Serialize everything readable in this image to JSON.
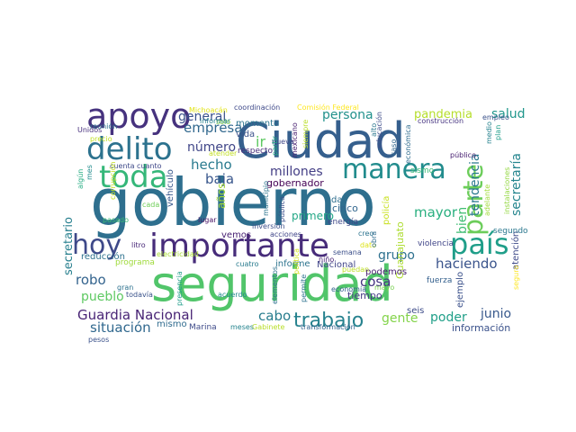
{
  "words": [
    {
      "text": "gobierno",
      "color": "#2e6f8e"
    },
    {
      "text": "seguridad",
      "color": "#51c56a"
    },
    {
      "text": "Ciudad",
      "color": "#355f8d"
    },
    {
      "text": "importante",
      "color": "#472c7a"
    },
    {
      "text": "apoyo",
      "color": "#46327e"
    },
    {
      "text": "delito",
      "color": "#2c728e"
    },
    {
      "text": "toda",
      "color": "#35b779"
    },
    {
      "text": "manera",
      "color": "#228c8d"
    },
    {
      "text": "país",
      "color": "#1f9e89"
    },
    {
      "text": "parte",
      "color": "#6ccd5a"
    },
    {
      "text": "hoy",
      "color": "#3e4989"
    },
    {
      "text": "trabajo",
      "color": "#26828e"
    },
    {
      "text": "Guardia Nacional",
      "color": "#482475"
    },
    {
      "text": "situación",
      "color": "#30688e"
    },
    {
      "text": "empresa",
      "color": "#31688e"
    },
    {
      "text": "general",
      "color": "#3b528b"
    },
    {
      "text": "persona",
      "color": "#21918c"
    },
    {
      "text": "pandemia",
      "color": "#b5de2b"
    },
    {
      "text": "salud",
      "color": "#1f968b"
    },
    {
      "text": "secretaría",
      "color": "#25858e"
    },
    {
      "text": "tendencia",
      "color": "#2a788e"
    },
    {
      "text": "bien",
      "color": "#3fbc73"
    },
    {
      "text": "millones",
      "color": "#433e85"
    },
    {
      "text": "baja",
      "color": "#39568c"
    },
    {
      "text": "hecho",
      "color": "#297a8e"
    },
    {
      "text": "número",
      "color": "#404688"
    },
    {
      "text": "mayor",
      "color": "#29af7f"
    },
    {
      "text": "grupo",
      "color": "#2d708e"
    },
    {
      "text": "haciendo",
      "color": "#3a548c"
    },
    {
      "text": "robo",
      "color": "#33638d"
    },
    {
      "text": "pueblo",
      "color": "#5ec962"
    },
    {
      "text": "cosa",
      "color": "#453581"
    },
    {
      "text": "poder",
      "color": "#1f9f88"
    },
    {
      "text": "gente",
      "color": "#84d44b"
    },
    {
      "text": "cabo",
      "color": "#287d8e"
    },
    {
      "text": "junio",
      "color": "#38598c"
    },
    {
      "text": "secretario",
      "color": "#277f8e"
    },
    {
      "text": "información",
      "color": "#3b528b"
    },
    {
      "text": "primero",
      "color": "#22a785"
    },
    {
      "text": "cinco",
      "color": "#31668e"
    },
    {
      "text": "tiempo",
      "color": "#443983"
    },
    {
      "text": "ir",
      "color": "#5ec962"
    },
    {
      "text": "mismo",
      "color": "#2f6b8e"
    },
    {
      "text": "Marina",
      "color": "#3e4a89"
    },
    {
      "text": "reducción",
      "color": "#2d718e"
    },
    {
      "text": "programa",
      "color": "#9fda3a"
    },
    {
      "text": "años",
      "color": "#a2da37"
    },
    {
      "text": "gobernador",
      "color": "#440154"
    },
    {
      "text": "vehículo",
      "color": "#38588c"
    },
    {
      "text": "momento",
      "color": "#2b748e"
    },
    {
      "text": "vida",
      "color": "#3b528b"
    },
    {
      "text": "respecto",
      "color": "#472d7b"
    },
    {
      "text": "informe",
      "color": "#2c738e"
    },
    {
      "text": "Nacional",
      "color": "#404588"
    },
    {
      "text": "dar",
      "color": "#2e6e8e"
    },
    {
      "text": "vemos",
      "color": "#482173"
    },
    {
      "text": "energía",
      "color": "#3f4889"
    },
    {
      "text": "Guanajuato",
      "color": "#addc30"
    },
    {
      "text": "policía",
      "color": "#c8e020"
    },
    {
      "text": "ejemplo",
      "color": "#3b518b"
    },
    {
      "text": "seis",
      "color": "#3e4c8a"
    },
    {
      "text": "podemos",
      "color": "#481f70"
    },
    {
      "text": "fuerza",
      "color": "#34608d"
    },
    {
      "text": "violencia",
      "color": "#404588"
    },
    {
      "text": "atención",
      "color": "#3e4a89"
    },
    {
      "text": "segundo",
      "color": "#2a778e"
    },
    {
      "text": "sismo",
      "color": "#3aba76"
    },
    {
      "text": "público",
      "color": "#482071"
    },
    {
      "text": "construcción",
      "color": "#463480"
    },
    {
      "text": "empleo",
      "color": "#3b528b"
    },
    {
      "text": "coordinación",
      "color": "#3e4989"
    },
    {
      "text": "Comisión Federal",
      "color": "#fde725"
    },
    {
      "text": "Michoacán",
      "color": "#e2e418"
    },
    {
      "text": "solo",
      "color": "#8bd646"
    },
    {
      "text": "informar",
      "color": "#26828e"
    },
    {
      "text": "atender",
      "color": "#c2df23"
    },
    {
      "text": "Unidos",
      "color": "#472f7d"
    },
    {
      "text": "reunión",
      "color": "#2c718e"
    },
    {
      "text": "precio",
      "color": "#c0df25"
    },
    {
      "text": "algún",
      "color": "#25ac82"
    },
    {
      "text": "mes",
      "color": "#228c8d"
    },
    {
      "text": "cuenta",
      "color": "#3e4a89"
    },
    {
      "text": "cuanto",
      "color": "#3f4788"
    },
    {
      "text": "corrupción",
      "color": "#c5e021"
    },
    {
      "text": "pasado",
      "color": "#3bbb75"
    },
    {
      "text": "cada",
      "color": "#6ece58"
    },
    {
      "text": "lugar",
      "color": "#471063"
    },
    {
      "text": "litro",
      "color": "#482878"
    },
    {
      "text": "gran",
      "color": "#2d718e"
    },
    {
      "text": "todavía",
      "color": "#3a538b"
    },
    {
      "text": "cuatro",
      "color": "#297b8e"
    },
    {
      "text": "acuerdo",
      "color": "#23898e"
    },
    {
      "text": "presencia",
      "color": "#1e9c89"
    },
    {
      "text": "electricidad",
      "color": "#a8db34"
    },
    {
      "text": "municipio",
      "color": "#2b758e"
    },
    {
      "text": "inversión",
      "color": "#3c4f8a"
    },
    {
      "text": "pública",
      "color": "#3c4f8a"
    },
    {
      "text": "nueva",
      "color": "#3f4788"
    },
    {
      "text": "partir",
      "color": "#22a884"
    },
    {
      "text": "mexicano",
      "color": "#482071"
    },
    {
      "text": "siempre",
      "color": "#bade28"
    },
    {
      "text": "educación",
      "color": "#3e4c8a"
    },
    {
      "text": "alto",
      "color": "#2a768e"
    },
    {
      "text": "medio",
      "color": "#26828e"
    },
    {
      "text": "plan",
      "color": "#1f9e89"
    },
    {
      "text": "económica",
      "color": "#2f6c8e"
    },
    {
      "text": "caso",
      "color": "#31678e"
    },
    {
      "text": "creo",
      "color": "#2c738e"
    },
    {
      "text": "dato",
      "color": "#dde318"
    },
    {
      "text": "semana",
      "color": "#3c4f8a"
    },
    {
      "text": "niño",
      "color": "#482576"
    },
    {
      "text": "obra",
      "color": "#2f6c8e"
    },
    {
      "text": "adelante",
      "color": "#a0da39"
    },
    {
      "text": "instalaciones",
      "color": "#93d741"
    },
    {
      "text": "acciones",
      "color": "#404588"
    },
    {
      "text": "elementos",
      "color": "#2c718e"
    },
    {
      "text": "permite",
      "color": "#2d718e"
    },
    {
      "text": "mayo",
      "color": "#7ad151"
    },
    {
      "text": "puedan",
      "color": "#bddf26"
    },
    {
      "text": "política",
      "color": "#d2e21b"
    },
    {
      "text": "economía",
      "color": "#34618d"
    },
    {
      "text": "transformación",
      "color": "#33638d"
    },
    {
      "text": "Gabinete",
      "color": "#b8de29"
    },
    {
      "text": "meses",
      "color": "#25848e"
    },
    {
      "text": "pesos",
      "color": "#3b528b"
    },
    {
      "text": "seguro",
      "color": "#fde725"
    }
  ]
}
